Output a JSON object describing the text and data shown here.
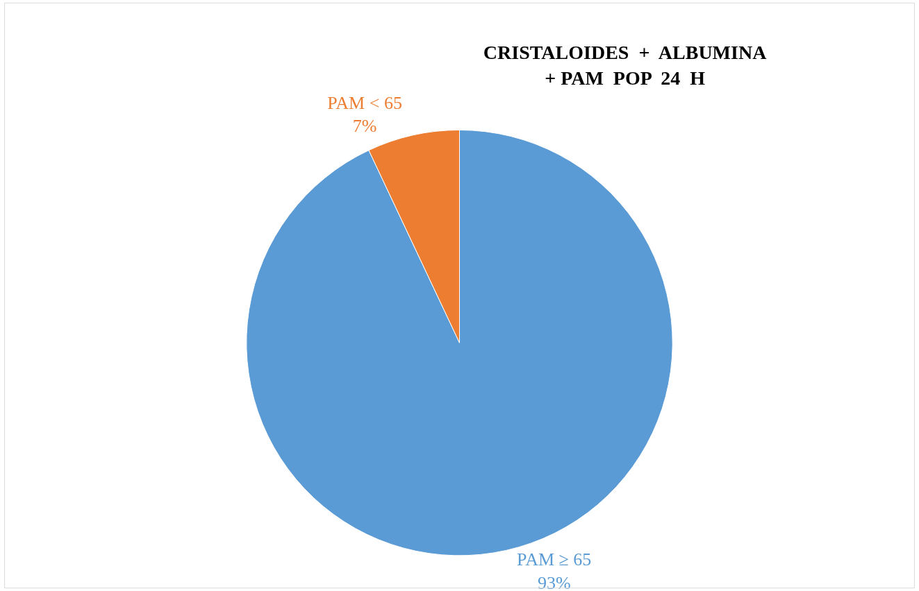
{
  "chart_data": {
    "type": "pie",
    "title": "CRISTALOIDES  +  ALBUMINA\n+ PAM  POP  24  H",
    "categories": [
      "PAM ≥ 65",
      "PAM < 65"
    ],
    "values": [
      93,
      7
    ],
    "value_labels": [
      "93%",
      "7%"
    ],
    "colors": [
      "#5b9bd5",
      "#ed7d31"
    ],
    "legend": false
  }
}
